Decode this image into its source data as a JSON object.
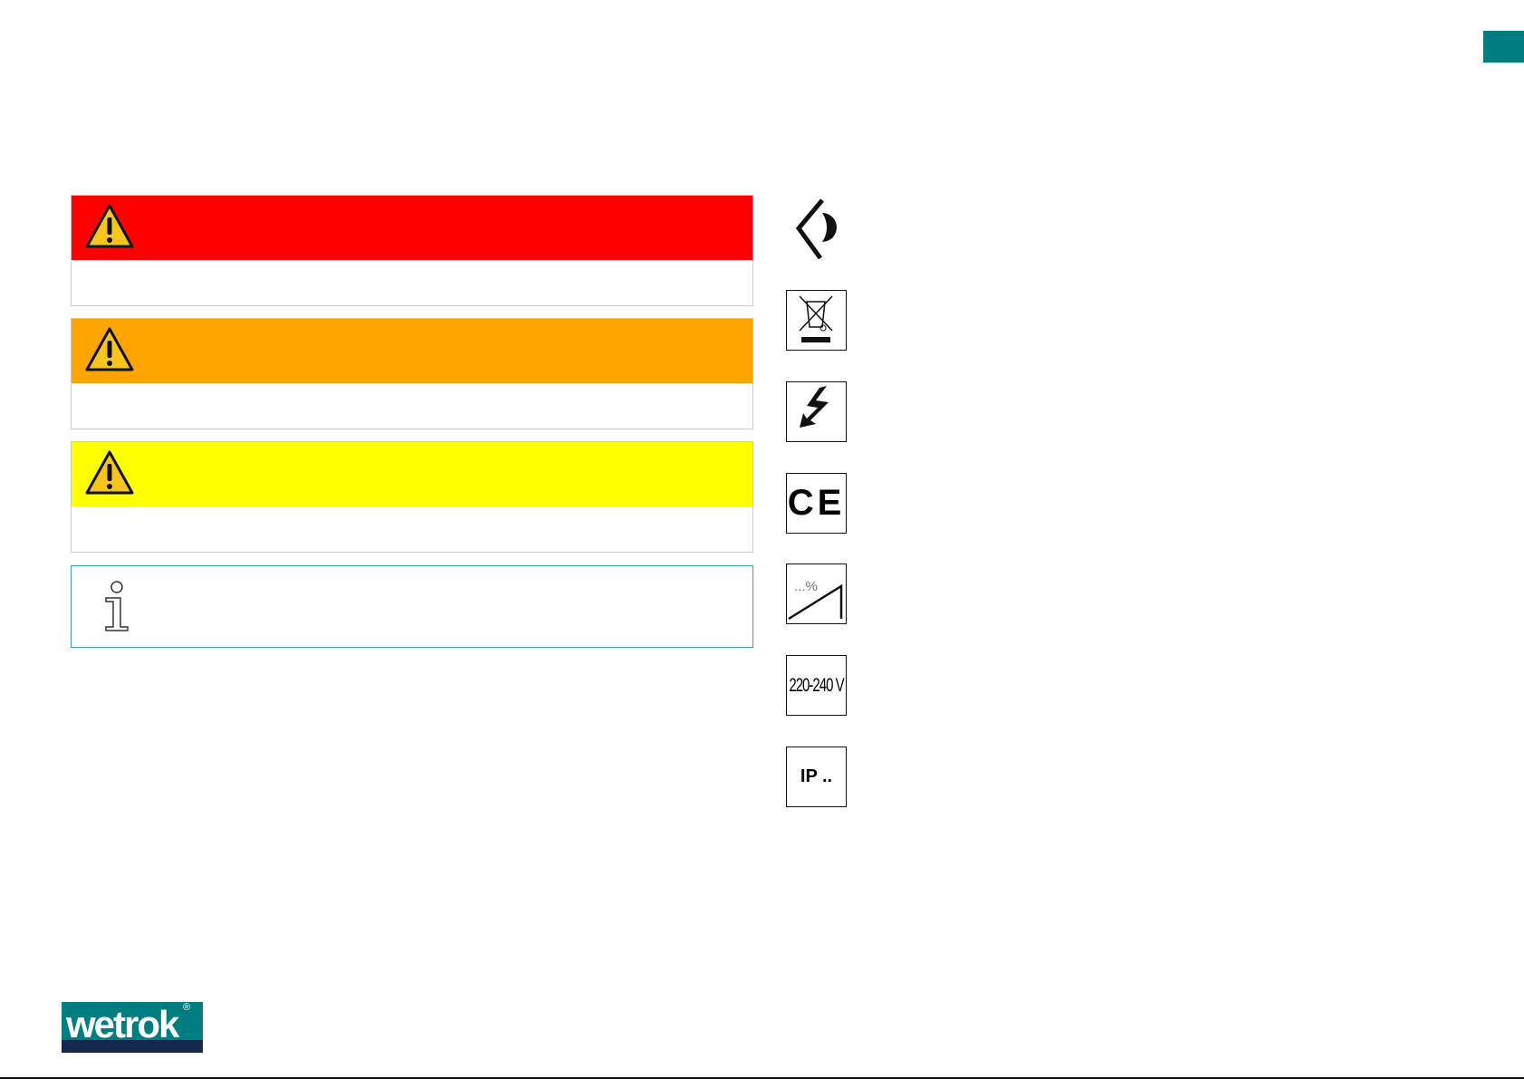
{
  "colors": {
    "danger": "#ff0000",
    "warning": "#ffa500",
    "caution": "#ffff00",
    "info_border": "#3aa6a6",
    "brand_teal": "#007d80",
    "brand_navy": "#13274f"
  },
  "notices": [
    {
      "level": "danger",
      "icon": "warning-triangle-icon"
    },
    {
      "level": "warning",
      "icon": "warning-triangle-icon"
    },
    {
      "level": "caution",
      "icon": "warning-triangle-icon"
    }
  ],
  "info_notice": {
    "icon": "info-icon"
  },
  "symbols": [
    {
      "icon": "eye-icon"
    },
    {
      "icon": "weee-crossed-bin-icon"
    },
    {
      "icon": "electric-hazard-icon"
    },
    {
      "icon": "ce-mark-icon",
      "text": "CE"
    },
    {
      "icon": "slope-percent-icon",
      "text": "...%"
    },
    {
      "icon": "voltage-icon",
      "text": "220-240 V"
    },
    {
      "icon": "ip-rating-icon",
      "text": "IP .."
    }
  ],
  "logo": {
    "text": "wetrok",
    "mark": "®"
  }
}
